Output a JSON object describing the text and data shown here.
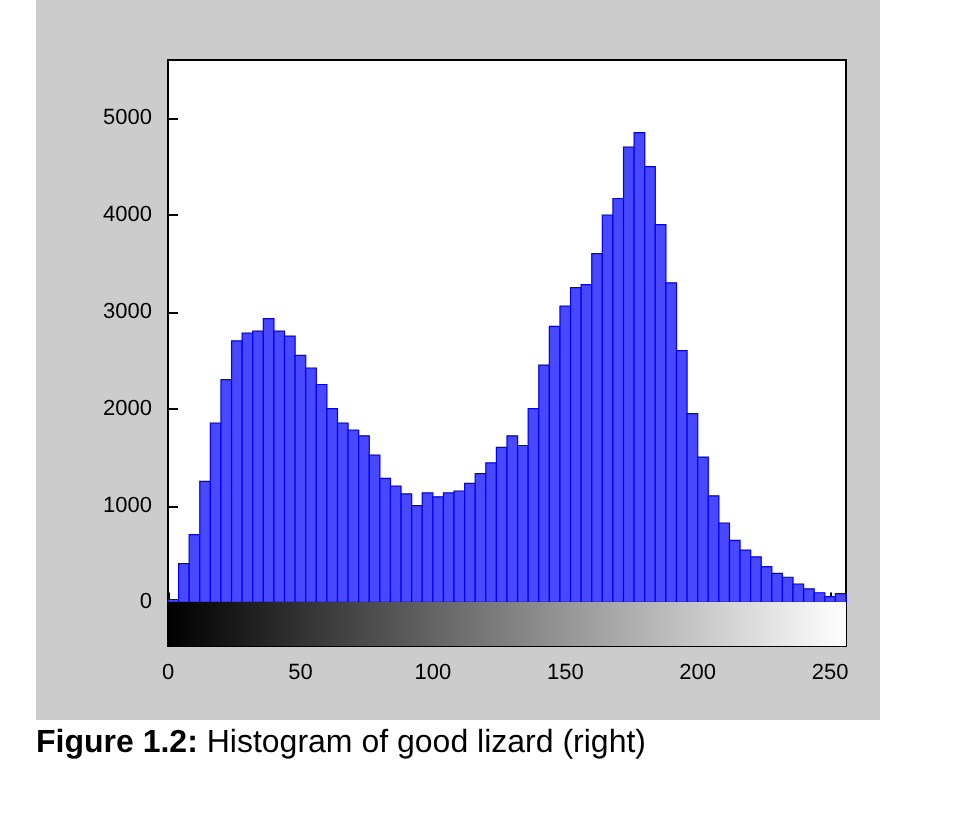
{
  "chart_data": {
    "type": "histogram",
    "bins": [
      0,
      4,
      8,
      12,
      16,
      20,
      24,
      28,
      32,
      36,
      40,
      44,
      48,
      52,
      56,
      60,
      64,
      68,
      72,
      76,
      80,
      84,
      88,
      92,
      96,
      100,
      104,
      108,
      112,
      116,
      120,
      124,
      128,
      132,
      136,
      140,
      144,
      148,
      152,
      156,
      160,
      164,
      168,
      172,
      176,
      180,
      184,
      188,
      192,
      196,
      200,
      204,
      208,
      212,
      216,
      220,
      224,
      228,
      232,
      236,
      240,
      244,
      248,
      252,
      256
    ],
    "values": [
      30,
      400,
      700,
      1250,
      1850,
      2300,
      2700,
      2780,
      2800,
      2930,
      2800,
      2750,
      2550,
      2420,
      2250,
      2000,
      1850,
      1780,
      1720,
      1520,
      1280,
      1200,
      1120,
      1000,
      1130,
      1090,
      1130,
      1150,
      1230,
      1330,
      1440,
      1600,
      1720,
      1620,
      2000,
      2450,
      2850,
      3060,
      3250,
      3280,
      3600,
      4000,
      4170,
      4700,
      4850,
      4500,
      3900,
      3300,
      2600,
      1950,
      1500,
      1100,
      820,
      640,
      540,
      470,
      370,
      300,
      260,
      190,
      140,
      100,
      60,
      90
    ],
    "color": "#4848ff",
    "xlim": [
      0,
      256
    ],
    "xticks": [
      0,
      50,
      100,
      150,
      200,
      250
    ],
    "ylim": [
      -450,
      5600
    ],
    "yticks": [
      0,
      1000,
      2000,
      3000,
      4000,
      5000
    ],
    "grid": false,
    "annotations": [
      "Figure 1.2: Histogram of good lizard (right)"
    ]
  }
}
